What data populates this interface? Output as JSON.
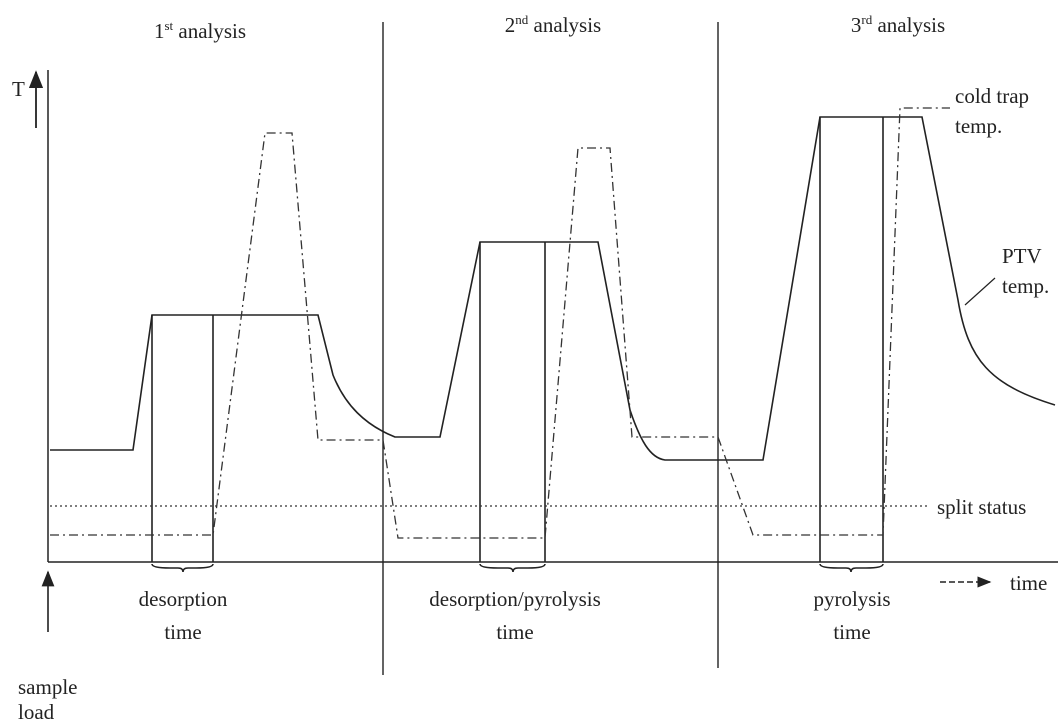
{
  "header": {
    "analyses": [
      {
        "number": "1",
        "suffix": "st",
        "label": "analysis"
      },
      {
        "number": "2",
        "suffix": "nd",
        "label": "analysis"
      },
      {
        "number": "3",
        "suffix": "rd",
        "label": "analysis"
      }
    ]
  },
  "axes": {
    "y_label": "T",
    "x_label": "time"
  },
  "curves": {
    "cold_trap": [
      "cold trap",
      "temp."
    ],
    "ptv": [
      "PTV",
      "temp."
    ],
    "split": "split status"
  },
  "windows": [
    [
      "desorption",
      "time"
    ],
    [
      "desorption/pyrolysis",
      "time"
    ],
    [
      "pyrolysis",
      "time"
    ]
  ],
  "start": [
    "sample",
    "load"
  ]
}
